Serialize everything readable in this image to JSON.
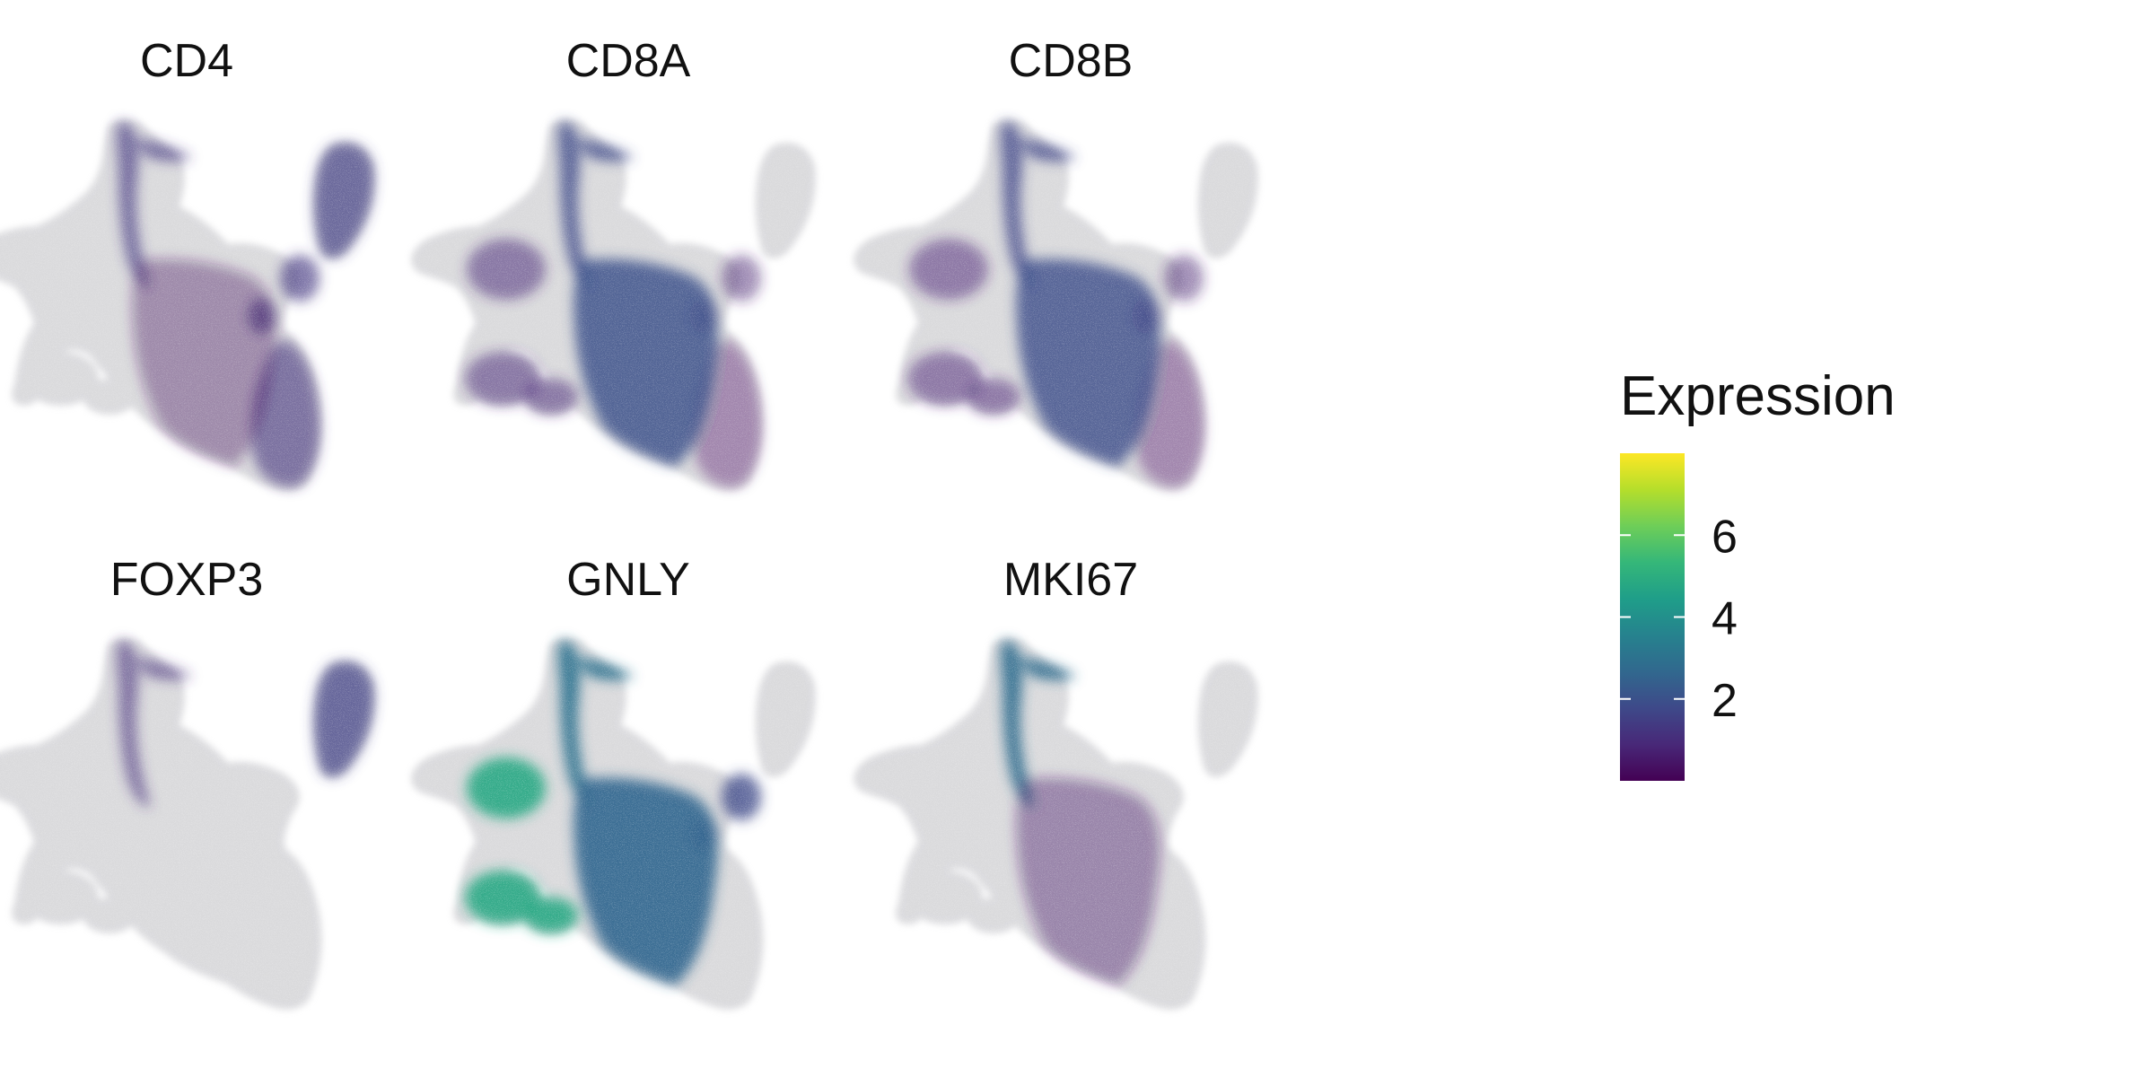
{
  "chart_data": {
    "type": "scatter",
    "subtype": "umap-feature-plot",
    "panels": [
      {
        "gene": "CD4",
        "expression": {
          "clusters": 0.0,
          "top_tip": 1.3,
          "right_lobe": 1.5,
          "mid_right": 1.3,
          "lower_right": 1.2,
          "main_body": 0.4
        }
      },
      {
        "gene": "CD8A",
        "expression": {
          "clusters": 0.9,
          "top_tip": 1.8,
          "right_lobe": 0.0,
          "mid_right": 0.7,
          "lower_right": 0.3,
          "main_body": 2.0
        }
      },
      {
        "gene": "CD8B",
        "expression": {
          "clusters": 0.8,
          "top_tip": 1.7,
          "right_lobe": 0.0,
          "mid_right": 0.7,
          "lower_right": 0.3,
          "main_body": 1.9
        }
      },
      {
        "gene": "FOXP3",
        "expression": {
          "clusters": 0.0,
          "top_tip": 1.1,
          "right_lobe": 1.6,
          "mid_right": 0.0,
          "lower_right": 0.0,
          "main_body": 0.0
        }
      },
      {
        "gene": "GNLY",
        "expression": {
          "clusters": 4.8,
          "top_tip": 3.0,
          "right_lobe": 0.0,
          "mid_right": 1.8,
          "lower_right": 0.0,
          "main_body": 2.6
        }
      },
      {
        "gene": "MKI67",
        "expression": {
          "clusters": 0.0,
          "top_tip": 2.8,
          "right_lobe": 0.0,
          "mid_right": 0.0,
          "lower_right": 0.0,
          "main_body": 0.5
        }
      }
    ],
    "legend": {
      "title": "Expression",
      "colormap": "viridis",
      "range": [
        0,
        8
      ],
      "ticks": [
        2,
        4,
        6
      ],
      "tick_labels": [
        "2",
        "4",
        "6"
      ],
      "placement": "right"
    },
    "colors": {
      "low": "#d6d6d9",
      "viridis_stops": [
        "#440154",
        "#482878",
        "#3e4989",
        "#31688e",
        "#26828e",
        "#1f9e89",
        "#35b779",
        "#6ece58",
        "#b5de2b",
        "#fde725"
      ]
    },
    "axes": "none",
    "grid": false
  }
}
